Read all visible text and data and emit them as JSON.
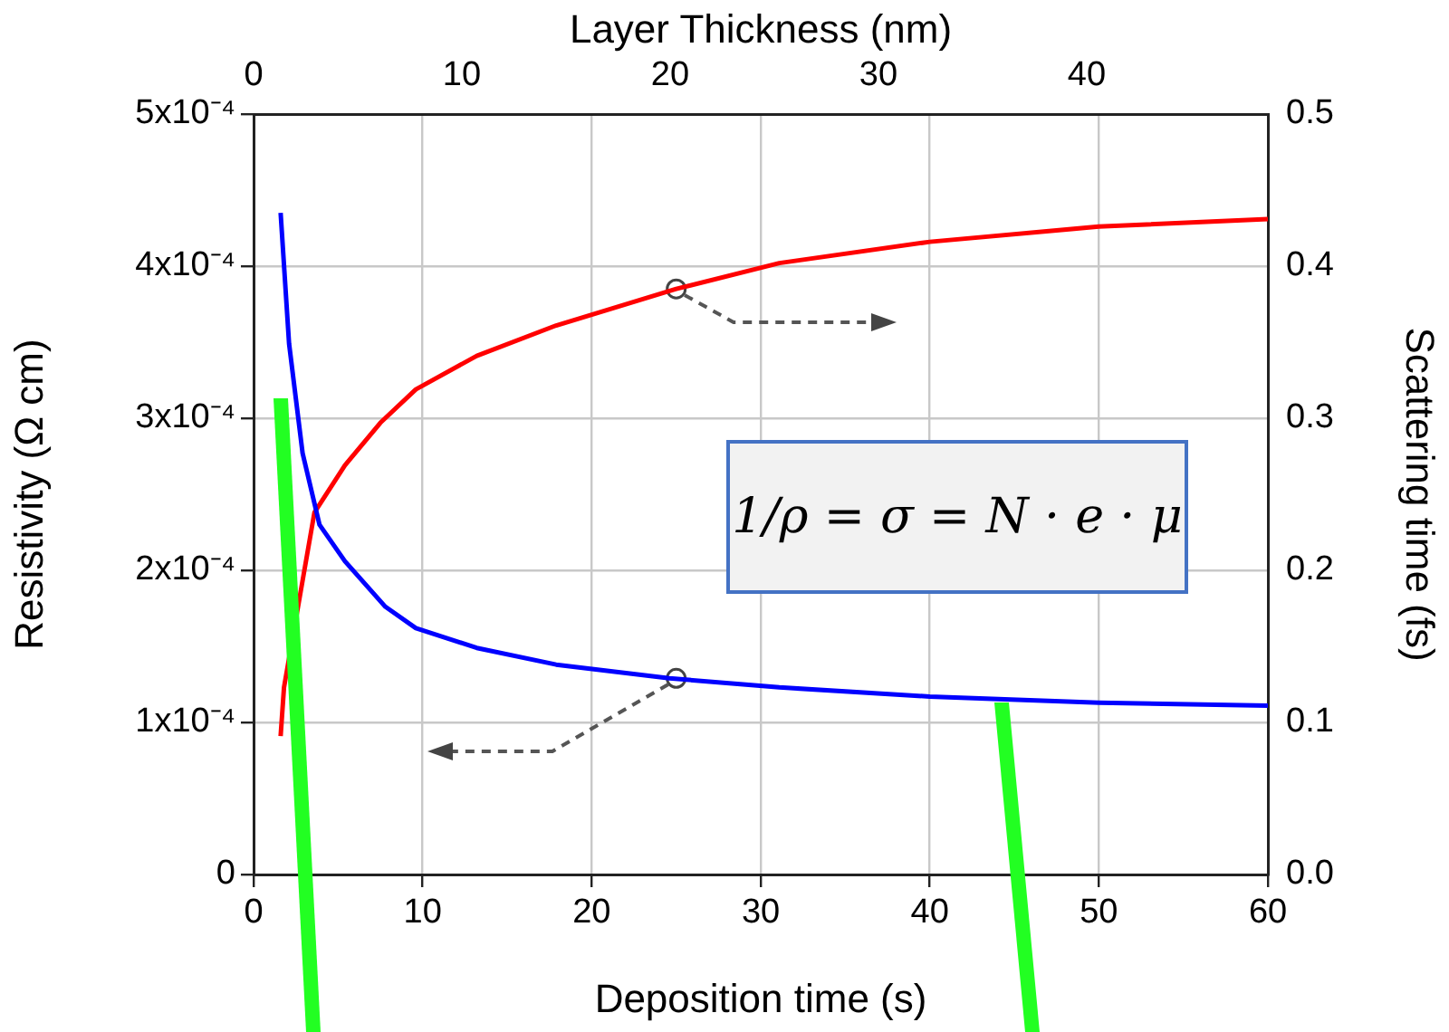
{
  "chart_data": {
    "type": "line",
    "xlabel": "Deposition time (s)",
    "ylabel": "Resistivity (Ω cm)",
    "y2label": "Scattering time (fs)",
    "x2label": "Layer Thickness (nm)",
    "xlim": [
      0,
      60
    ],
    "xticks": [
      0,
      10,
      20,
      30,
      40,
      50,
      60
    ],
    "x2lim": [
      0,
      48.7
    ],
    "x2ticks": [
      0,
      10,
      20,
      30,
      40
    ],
    "ylim": [
      0,
      0.0005
    ],
    "yticks": [
      {
        "value": 0,
        "label": "0"
      },
      {
        "value": 0.0001,
        "label": "1x10⁻⁴"
      },
      {
        "value": 0.0002,
        "label": "2x10⁻⁴"
      },
      {
        "value": 0.0003,
        "label": "3x10⁻⁴"
      },
      {
        "value": 0.0004,
        "label": "4x10⁻⁴"
      },
      {
        "value": 0.0005,
        "label": "5x10⁻⁴"
      }
    ],
    "y2lim": [
      0,
      0.5
    ],
    "y2ticks": [
      {
        "value": 0,
        "label": "0.0"
      },
      0.1,
      0.2,
      0.3,
      0.4,
      0.5
    ],
    "grid": true,
    "legend": false,
    "marker": "none",
    "line_style": "solid",
    "series": [
      {
        "color": "#0000ff",
        "x": [
          1.6,
          2.1,
          2.9,
          3.9,
          5.4,
          7.8,
          9.6,
          13.2,
          17.9,
          24.6,
          31.1,
          40,
          50,
          60
        ],
        "values": [
          0.000435,
          0.000349,
          0.000277,
          0.00023,
          0.000206,
          0.000176,
          0.000162,
          0.000149,
          0.000138,
          0.000129,
          0.000123,
          0.000117,
          0.000113,
          0.000111
        ]
      },
      {
        "color": "#ff0000",
        "axis": "y2",
        "x": [
          1.6,
          1.8,
          3.6,
          5.4,
          7.5,
          9.6,
          13.2,
          17.9,
          25,
          31.1,
          40,
          50,
          60
        ],
        "values": [
          0.091,
          0.123,
          0.238,
          0.269,
          0.297,
          0.319,
          0.341,
          0.361,
          0.385,
          0.402,
          0.416,
          0.426,
          0.431
        ]
      },
      {
        "type": "scatter",
        "marker": "circle",
        "color": "#444444",
        "x": [
          25
        ],
        "values": [
          0.000129
        ]
      },
      {
        "type": "scatter",
        "marker": "circle",
        "color": "#444444",
        "axis": "y2",
        "x": [
          25
        ],
        "values": [
          0.385
        ]
      }
    ],
    "annotations": [
      "1/ρ = σ = N · e · μ"
    ]
  }
}
